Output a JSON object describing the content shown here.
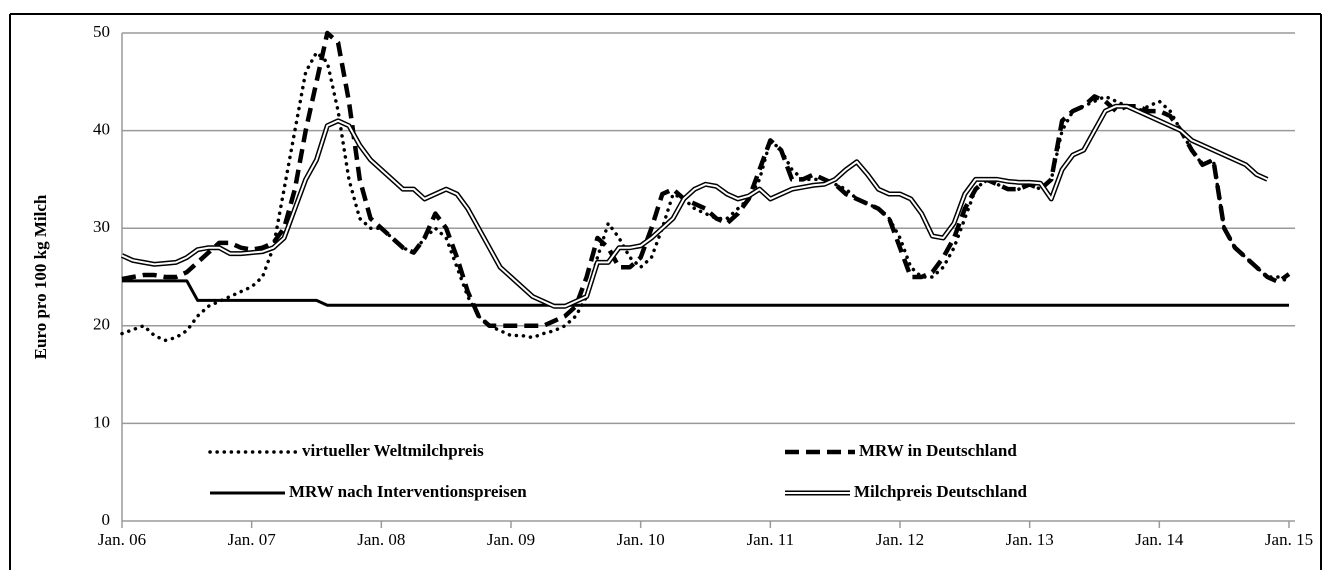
{
  "chart_data": {
    "type": "line",
    "y_label": "Euro pro 100 kg Milch",
    "categories": [
      "Jan. 06",
      null,
      null,
      null,
      null,
      null,
      null,
      null,
      null,
      null,
      null,
      null,
      "Jan. 07",
      null,
      null,
      null,
      null,
      null,
      null,
      null,
      null,
      null,
      null,
      null,
      "Jan. 08",
      null,
      null,
      null,
      null,
      null,
      null,
      null,
      null,
      null,
      null,
      null,
      "Jan. 09",
      null,
      null,
      null,
      null,
      null,
      null,
      null,
      null,
      null,
      null,
      null,
      "Jan. 10",
      null,
      null,
      null,
      null,
      null,
      null,
      null,
      null,
      null,
      null,
      null,
      "Jan. 11",
      null,
      null,
      null,
      null,
      null,
      null,
      null,
      null,
      null,
      null,
      null,
      "Jan. 12",
      null,
      null,
      null,
      null,
      null,
      null,
      null,
      null,
      null,
      null,
      null,
      "Jan. 13",
      null,
      null,
      null,
      null,
      null,
      null,
      null,
      null,
      null,
      null,
      null,
      "Jan. 14",
      null,
      null,
      null,
      null,
      null,
      null,
      null,
      null,
      null,
      null,
      null,
      "Jan. 15"
    ],
    "ylim": [
      0,
      50
    ],
    "yticks": [
      0,
      10,
      20,
      30,
      40,
      50
    ],
    "grid": true,
    "series": [
      {
        "name": "virtueller Weltmilchpreis",
        "color": "#000000",
        "line_style": "dotted",
        "values": [
          19.2,
          19.6,
          20,
          19,
          18.5,
          18.8,
          19.5,
          21,
          22,
          22.5,
          23,
          23.5,
          24,
          25,
          28,
          34,
          40,
          46,
          48,
          47,
          42,
          35,
          31,
          30,
          30,
          29,
          28,
          27.5,
          29,
          30,
          29,
          26,
          23,
          21,
          20,
          19.5,
          19,
          19,
          18.8,
          19.2,
          19.5,
          20,
          21,
          23,
          27,
          30.5,
          29,
          27,
          26,
          27,
          30,
          33.5,
          33,
          32,
          31.5,
          31,
          31,
          32,
          33,
          35,
          39,
          38,
          36,
          35,
          35,
          35,
          34.5,
          34,
          33,
          32.5,
          32,
          31,
          29,
          26,
          25,
          25,
          26,
          28,
          31,
          34,
          35,
          34.5,
          34,
          34,
          34.5,
          34,
          35,
          40,
          42,
          42.5,
          43,
          43.5,
          43,
          42.5,
          42,
          42.5,
          43,
          42,
          40,
          38,
          36.5,
          37,
          30,
          28,
          27,
          26,
          25,
          25,
          24.5
        ]
      },
      {
        "name": "MRW in Deutschland",
        "color": "#000000",
        "line_style": "dashed",
        "values": [
          24.8,
          25,
          25.2,
          25.2,
          25,
          25,
          25.5,
          26.5,
          27.5,
          28.5,
          28.5,
          28,
          27.8,
          28,
          28.5,
          30,
          34,
          40,
          45,
          50,
          49,
          43,
          35,
          31,
          30,
          29,
          28,
          27.5,
          29,
          31.5,
          30,
          27,
          23.5,
          21,
          20,
          20,
          20,
          20,
          20,
          20,
          20.5,
          21,
          22,
          25,
          29,
          28,
          26,
          26,
          27,
          30,
          33.5,
          34,
          33,
          32.5,
          32,
          31,
          30.5,
          31.5,
          33,
          36,
          39,
          38,
          35,
          35,
          35.5,
          35,
          34.5,
          33.5,
          33,
          32.5,
          32,
          31,
          28,
          25,
          25,
          25.5,
          27,
          29,
          32,
          34,
          35,
          34.5,
          34,
          34,
          34.5,
          34,
          35,
          41,
          42,
          42.5,
          43.5,
          43,
          42,
          42.5,
          42.5,
          42,
          42,
          41.5,
          40,
          38,
          36.5,
          37,
          30,
          28,
          27,
          26,
          25,
          24.5,
          25.3
        ]
      },
      {
        "name": "MRW nach Interventionspreisen",
        "color": "#000000",
        "line_style": "solid",
        "values": [
          24.6,
          24.6,
          24.6,
          24.6,
          24.6,
          24.6,
          24.6,
          22.6,
          22.6,
          22.6,
          22.6,
          22.6,
          22.6,
          22.6,
          22.6,
          22.6,
          22.6,
          22.6,
          22.6,
          22.1,
          22.1,
          22.1,
          22.1,
          22.1,
          22.1,
          22.1,
          22.1,
          22.1,
          22.1,
          22.1,
          22.1,
          22.1,
          22.1,
          22.1,
          22.1,
          22.1,
          22.1,
          22.1,
          22.1,
          22.1,
          22.1,
          22.1,
          22.1,
          22.1,
          22.1,
          22.1,
          22.1,
          22.1,
          22.1,
          22.1,
          22.1,
          22.1,
          22.1,
          22.1,
          22.1,
          22.1,
          22.1,
          22.1,
          22.1,
          22.1,
          22.1,
          22.1,
          22.1,
          22.1,
          22.1,
          22.1,
          22.1,
          22.1,
          22.1,
          22.1,
          22.1,
          22.1,
          22.1,
          22.1,
          22.1,
          22.1,
          22.1,
          22.1,
          22.1,
          22.1,
          22.1,
          22.1,
          22.1,
          22.1,
          22.1,
          22.1,
          22.1,
          22.1,
          22.1,
          22.1,
          22.1,
          22.1,
          22.1,
          22.1,
          22.1,
          22.1,
          22.1,
          22.1,
          22.1,
          22.1,
          22.1,
          22.1,
          22.1,
          22.1,
          22.1,
          22.1,
          22.1,
          22.1,
          22.1
        ]
      },
      {
        "name": "Milchpreis Deutschland",
        "color": "#000000",
        "line_style": "double",
        "values": [
          27.2,
          26.7,
          26.5,
          26.3,
          26.4,
          26.5,
          27,
          27.8,
          28,
          28,
          27.4,
          27.4,
          27.5,
          27.6,
          28,
          29,
          32,
          35,
          37,
          40.5,
          41,
          40.5,
          38.5,
          37,
          36,
          35,
          34,
          34,
          33,
          33.5,
          34,
          33.5,
          32,
          30,
          28,
          26,
          25,
          24,
          23,
          22.5,
          22,
          22,
          22.5,
          23,
          26.5,
          26.5,
          28,
          28,
          28.2,
          29,
          30,
          31,
          33,
          34,
          34.5,
          34.3,
          33.5,
          33,
          33.3,
          34,
          33,
          33.5,
          34,
          34.2,
          34.4,
          34.5,
          35,
          36,
          36.8,
          35.5,
          34,
          33.5,
          33.5,
          33,
          31.5,
          29.2,
          29,
          30.5,
          33.5,
          35,
          35,
          35,
          34.8,
          34.7,
          34.7,
          34.6,
          33,
          36,
          37.5,
          38,
          40,
          42,
          42.5,
          42.5,
          42,
          41.5,
          41,
          40.5,
          40,
          39,
          38.5,
          38,
          37.5,
          37,
          36.5,
          35.5,
          35,
          null,
          null
        ]
      }
    ]
  }
}
